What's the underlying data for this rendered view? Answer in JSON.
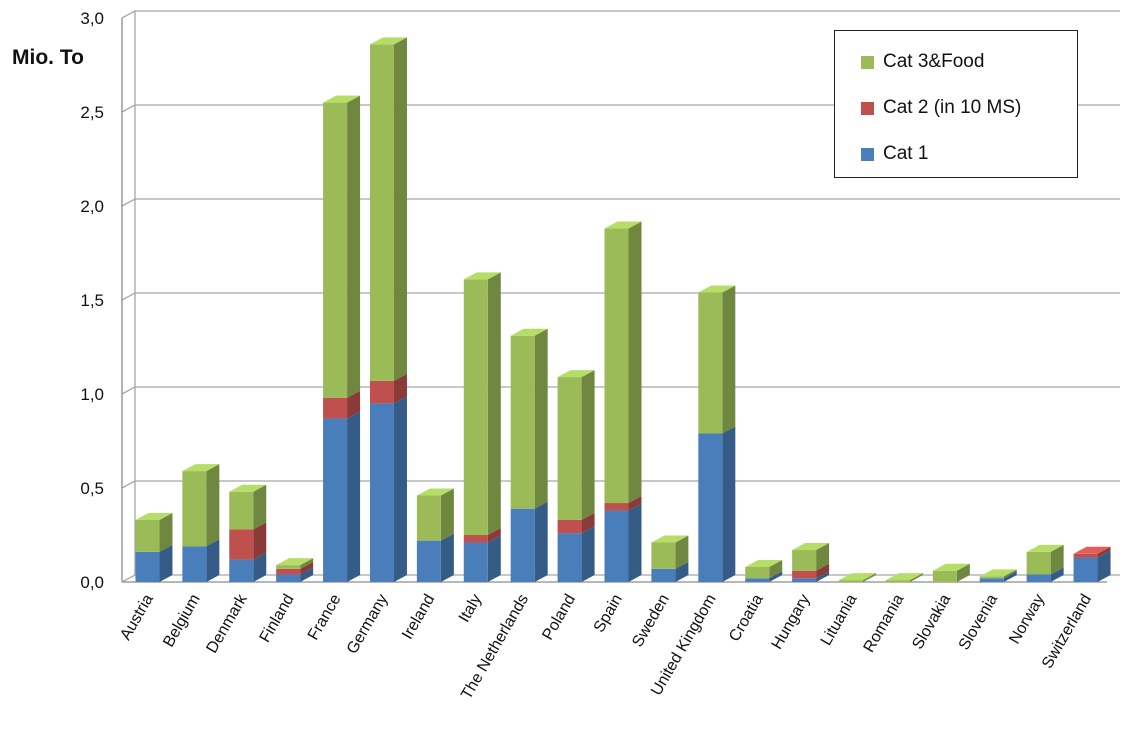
{
  "chart_data": {
    "type": "bar",
    "stacked": true,
    "ylabel": "Mio. To",
    "xlabel": "",
    "ylim": [
      0,
      3.0
    ],
    "yticks": [
      "0,0",
      "0,5",
      "1,0",
      "1,5",
      "2,0",
      "2,5",
      "3,0"
    ],
    "grid": true,
    "legend_position": "top-right",
    "categories": [
      "Austria",
      "Belgium",
      "Denmark",
      "Finland",
      "France",
      "Germany",
      "Ireland",
      "Italy",
      "The Netherlands",
      "Poland",
      "Spain",
      "Sweden",
      "United Kingdom",
      "Croatia",
      "Hungary",
      "Lituania",
      "Romania",
      "Slovakia",
      "Slovenia",
      "Norway",
      "Switzerland"
    ],
    "series": [
      {
        "name": "Cat 1",
        "color": "#4a7ebb",
        "values": [
          0.16,
          0.19,
          0.12,
          0.04,
          0.87,
          0.95,
          0.22,
          0.21,
          0.39,
          0.26,
          0.38,
          0.07,
          0.79,
          0.02,
          0.02,
          0.0,
          0.0,
          0.0,
          0.02,
          0.04,
          0.13
        ]
      },
      {
        "name": "Cat 2 (in 10 MS)",
        "color": "#c0504d",
        "values": [
          0.0,
          0.0,
          0.16,
          0.03,
          0.11,
          0.12,
          0.0,
          0.04,
          0.0,
          0.07,
          0.04,
          0.0,
          0.0,
          0.0,
          0.04,
          0.0,
          0.0,
          0.0,
          0.0,
          0.0,
          0.02
        ]
      },
      {
        "name": "Cat 3&Food",
        "color": "#9bbb59",
        "values": [
          0.17,
          0.4,
          0.2,
          0.02,
          1.57,
          1.79,
          0.24,
          1.36,
          0.92,
          0.76,
          1.46,
          0.14,
          0.75,
          0.06,
          0.11,
          0.01,
          0.01,
          0.06,
          0.01,
          0.12,
          0.0
        ]
      }
    ]
  }
}
